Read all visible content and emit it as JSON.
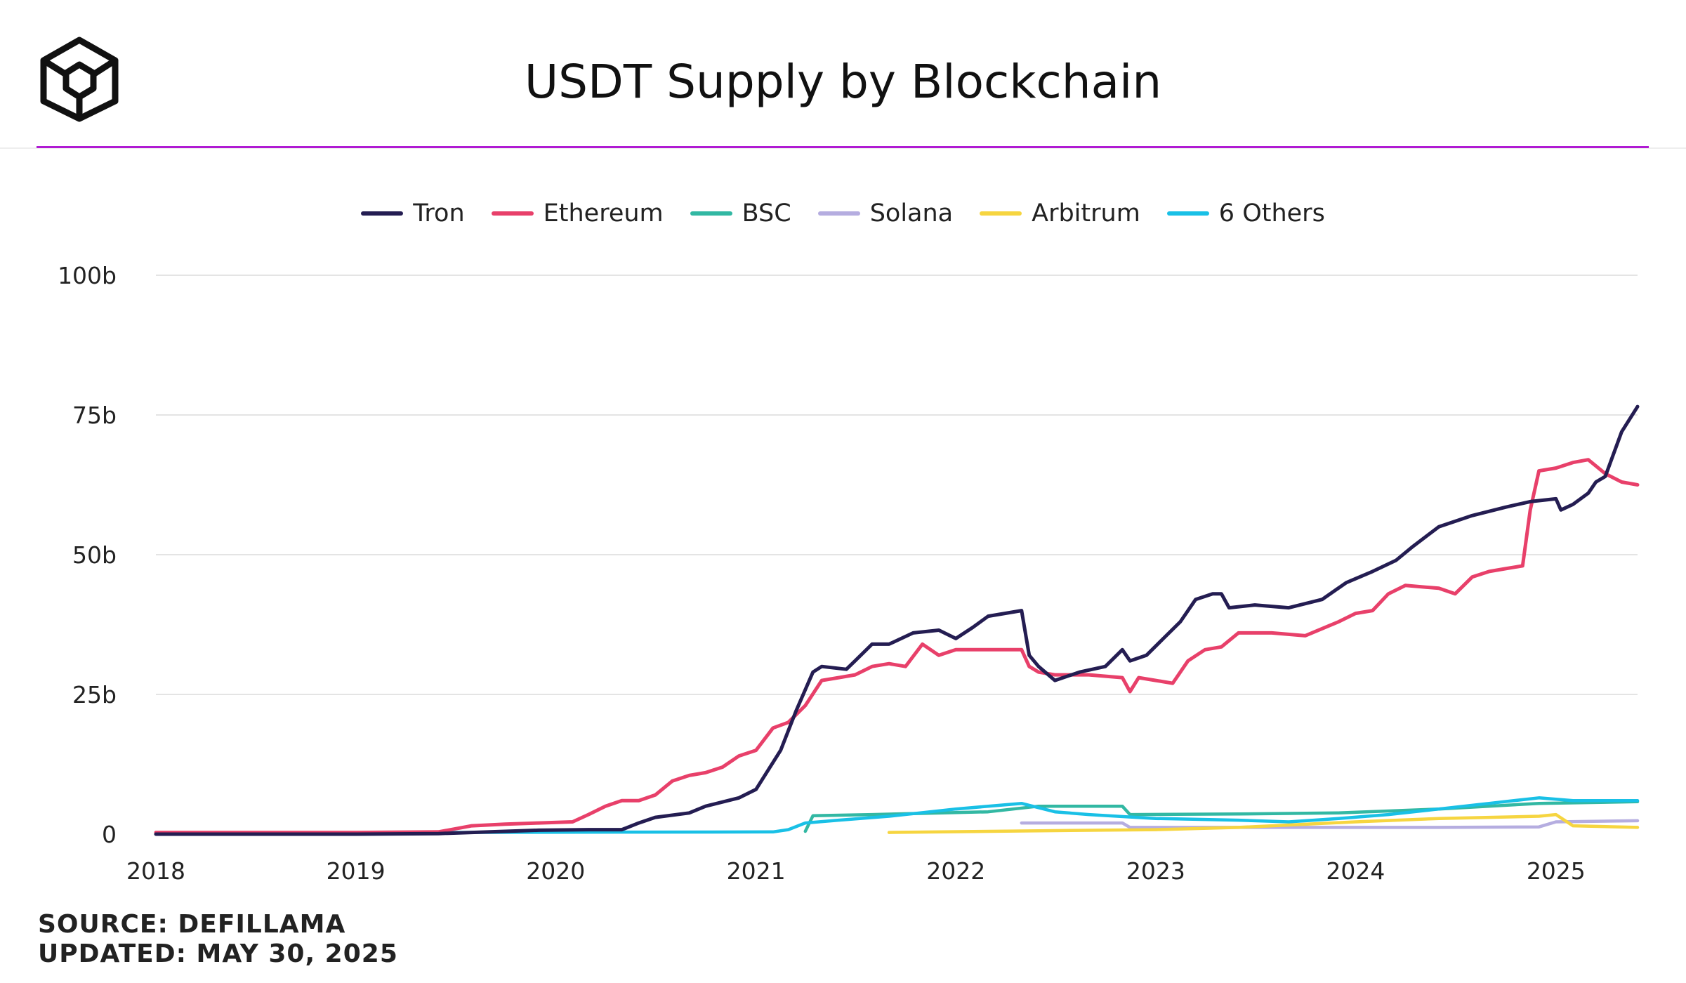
{
  "header": {
    "title": "USDT Supply by Blockchain",
    "logo_icon": "cube-logo-icon",
    "accent_color": "#b01bd3"
  },
  "footer": {
    "source": "SOURCE: DEFILLAMA",
    "updated": "UPDATED: MAY 30, 2025"
  },
  "chart_data": {
    "type": "line",
    "title": "USDT Supply by Blockchain",
    "xlabel": "",
    "ylabel": "",
    "x_ticks": [
      "2018",
      "2019",
      "2020",
      "2021",
      "2022",
      "2023",
      "2024",
      "2025"
    ],
    "y_ticks": [
      "0",
      "25b",
      "50b",
      "75b",
      "100b"
    ],
    "y_tick_values": [
      0,
      25,
      50,
      75,
      100
    ],
    "ylim": [
      0,
      100
    ],
    "xlim": [
      "2018-01-01",
      "2025-05-30"
    ],
    "grid": true,
    "legend_position": "top",
    "series": [
      {
        "name": "Tron",
        "color": "#241d52",
        "points": [
          [
            "2018-01-01",
            0
          ],
          [
            "2019-01-01",
            0
          ],
          [
            "2019-06-01",
            0.1
          ],
          [
            "2019-10-01",
            0.5
          ],
          [
            "2019-12-01",
            0.7
          ],
          [
            "2020-03-01",
            0.8
          ],
          [
            "2020-05-01",
            0.8
          ],
          [
            "2020-06-01",
            2
          ],
          [
            "2020-07-01",
            3
          ],
          [
            "2020-09-01",
            3.8
          ],
          [
            "2020-10-01",
            5
          ],
          [
            "2020-12-01",
            6.5
          ],
          [
            "2021-01-01",
            8
          ],
          [
            "2021-02-15",
            15
          ],
          [
            "2021-03-15",
            22
          ],
          [
            "2021-04-15",
            29
          ],
          [
            "2021-05-01",
            30
          ],
          [
            "2021-06-15",
            29.5
          ],
          [
            "2021-07-01",
            31
          ],
          [
            "2021-08-01",
            34
          ],
          [
            "2021-09-01",
            34
          ],
          [
            "2021-10-15",
            36
          ],
          [
            "2021-12-01",
            36.5
          ],
          [
            "2022-01-01",
            35
          ],
          [
            "2022-02-01",
            37
          ],
          [
            "2022-03-01",
            39
          ],
          [
            "2022-05-01",
            40
          ],
          [
            "2022-05-15",
            32
          ],
          [
            "2022-06-01",
            30
          ],
          [
            "2022-07-01",
            27.5
          ],
          [
            "2022-08-15",
            29
          ],
          [
            "2022-10-01",
            30
          ],
          [
            "2022-11-01",
            33
          ],
          [
            "2022-11-15",
            31
          ],
          [
            "2022-12-15",
            32
          ],
          [
            "2023-01-15",
            35
          ],
          [
            "2023-02-15",
            38
          ],
          [
            "2023-03-15",
            42
          ],
          [
            "2023-04-15",
            43
          ],
          [
            "2023-05-01",
            43
          ],
          [
            "2023-05-15",
            40.5
          ],
          [
            "2023-07-01",
            41
          ],
          [
            "2023-09-01",
            40.5
          ],
          [
            "2023-11-01",
            42
          ],
          [
            "2023-12-15",
            45
          ],
          [
            "2024-02-01",
            47
          ],
          [
            "2024-03-15",
            49
          ],
          [
            "2024-04-15",
            51.5
          ],
          [
            "2024-06-01",
            55
          ],
          [
            "2024-08-01",
            57
          ],
          [
            "2024-10-01",
            58.5
          ],
          [
            "2024-11-15",
            59.5
          ],
          [
            "2025-01-01",
            60
          ],
          [
            "2025-01-10",
            58
          ],
          [
            "2025-02-01",
            59
          ],
          [
            "2025-03-01",
            61
          ],
          [
            "2025-03-15",
            63
          ],
          [
            "2025-04-01",
            64
          ],
          [
            "2025-05-01",
            72
          ],
          [
            "2025-05-30",
            76.5
          ]
        ]
      },
      {
        "name": "Ethereum",
        "color": "#e8406a",
        "points": [
          [
            "2018-01-01",
            0.3
          ],
          [
            "2019-01-01",
            0.3
          ],
          [
            "2019-06-01",
            0.4
          ],
          [
            "2019-08-01",
            1.5
          ],
          [
            "2019-10-01",
            1.8
          ],
          [
            "2019-12-01",
            2
          ],
          [
            "2020-02-01",
            2.2
          ],
          [
            "2020-03-01",
            3.5
          ],
          [
            "2020-04-01",
            5
          ],
          [
            "2020-05-01",
            6
          ],
          [
            "2020-06-01",
            6
          ],
          [
            "2020-07-01",
            7
          ],
          [
            "2020-08-01",
            9.5
          ],
          [
            "2020-09-01",
            10.5
          ],
          [
            "2020-10-01",
            11
          ],
          [
            "2020-11-01",
            12
          ],
          [
            "2020-12-01",
            14
          ],
          [
            "2021-01-01",
            15
          ],
          [
            "2021-02-01",
            19
          ],
          [
            "2021-03-01",
            20
          ],
          [
            "2021-04-01",
            23
          ],
          [
            "2021-05-01",
            27.5
          ],
          [
            "2021-06-01",
            28
          ],
          [
            "2021-07-01",
            28.5
          ],
          [
            "2021-08-01",
            30
          ],
          [
            "2021-09-01",
            30.5
          ],
          [
            "2021-10-01",
            30
          ],
          [
            "2021-11-01",
            34
          ],
          [
            "2021-12-01",
            32
          ],
          [
            "2022-01-01",
            33
          ],
          [
            "2022-03-01",
            33
          ],
          [
            "2022-05-01",
            33
          ],
          [
            "2022-05-15",
            30
          ],
          [
            "2022-06-01",
            29
          ],
          [
            "2022-07-01",
            28.5
          ],
          [
            "2022-09-01",
            28.5
          ],
          [
            "2022-11-01",
            28
          ],
          [
            "2022-11-15",
            25.5
          ],
          [
            "2022-12-01",
            28
          ],
          [
            "2023-01-01",
            27.5
          ],
          [
            "2023-02-01",
            27
          ],
          [
            "2023-03-01",
            31
          ],
          [
            "2023-04-01",
            33
          ],
          [
            "2023-05-01",
            33.5
          ],
          [
            "2023-06-01",
            36
          ],
          [
            "2023-08-01",
            36
          ],
          [
            "2023-10-01",
            35.5
          ],
          [
            "2023-12-01",
            38
          ],
          [
            "2024-01-01",
            39.5
          ],
          [
            "2024-02-01",
            40
          ],
          [
            "2024-03-01",
            43
          ],
          [
            "2024-04-01",
            44.5
          ],
          [
            "2024-06-01",
            44
          ],
          [
            "2024-07-01",
            43
          ],
          [
            "2024-08-01",
            46
          ],
          [
            "2024-09-01",
            47
          ],
          [
            "2024-10-01",
            47.5
          ],
          [
            "2024-11-01",
            48
          ],
          [
            "2024-11-15",
            58
          ],
          [
            "2024-12-01",
            65
          ],
          [
            "2025-01-01",
            65.5
          ],
          [
            "2025-02-01",
            66.5
          ],
          [
            "2025-03-01",
            67
          ],
          [
            "2025-04-01",
            64.5
          ],
          [
            "2025-05-01",
            63
          ],
          [
            "2025-05-30",
            62.5
          ]
        ]
      },
      {
        "name": "BSC",
        "color": "#32b8a3",
        "points": [
          [
            "2021-04-01",
            0.5
          ],
          [
            "2021-04-15",
            3.3
          ],
          [
            "2021-08-01",
            3.5
          ],
          [
            "2022-03-01",
            4
          ],
          [
            "2022-06-01",
            5
          ],
          [
            "2022-11-01",
            5
          ],
          [
            "2022-11-15",
            3.5
          ],
          [
            "2023-06-01",
            3.6
          ],
          [
            "2023-12-01",
            3.8
          ],
          [
            "2024-06-01",
            4.5
          ],
          [
            "2024-12-01",
            5.5
          ],
          [
            "2025-05-30",
            5.8
          ]
        ]
      },
      {
        "name": "Solana",
        "color": "#b5ade0",
        "points": [
          [
            "2022-05-01",
            2
          ],
          [
            "2022-11-01",
            2
          ],
          [
            "2022-11-15",
            1.2
          ],
          [
            "2023-06-01",
            1.2
          ],
          [
            "2024-06-01",
            1.2
          ],
          [
            "2024-12-01",
            1.3
          ],
          [
            "2025-01-01",
            2.2
          ],
          [
            "2025-05-30",
            2.4
          ]
        ]
      },
      {
        "name": "Arbitrum",
        "color": "#f6d540",
        "points": [
          [
            "2021-09-01",
            0.3
          ],
          [
            "2022-06-01",
            0.6
          ],
          [
            "2023-01-01",
            0.8
          ],
          [
            "2023-06-01",
            1.2
          ],
          [
            "2024-01-01",
            2.2
          ],
          [
            "2024-06-01",
            2.8
          ],
          [
            "2024-12-01",
            3.2
          ],
          [
            "2025-01-01",
            3.5
          ],
          [
            "2025-02-01",
            1.5
          ],
          [
            "2025-05-30",
            1.2
          ]
        ]
      },
      {
        "name": "6 Others",
        "color": "#19c0e6",
        "points": [
          [
            "2018-01-01",
            0.2
          ],
          [
            "2021-02-01",
            0.4
          ],
          [
            "2021-03-01",
            0.8
          ],
          [
            "2021-04-01",
            2
          ],
          [
            "2021-06-01",
            2.5
          ],
          [
            "2021-09-01",
            3.2
          ],
          [
            "2022-01-01",
            4.5
          ],
          [
            "2022-05-01",
            5.5
          ],
          [
            "2022-07-01",
            4
          ],
          [
            "2022-09-01",
            3.5
          ],
          [
            "2023-01-01",
            2.8
          ],
          [
            "2023-06-01",
            2.5
          ],
          [
            "2023-09-01",
            2.2
          ],
          [
            "2023-12-01",
            2.8
          ],
          [
            "2024-03-01",
            3.5
          ],
          [
            "2024-06-01",
            4.5
          ],
          [
            "2024-09-01",
            5.5
          ],
          [
            "2024-12-01",
            6.5
          ],
          [
            "2025-02-01",
            6
          ],
          [
            "2025-05-30",
            6
          ]
        ]
      }
    ]
  }
}
